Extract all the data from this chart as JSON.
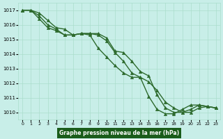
{
  "title": "Graphe pression niveau de la mer (hPa)",
  "xlabel_hours": [
    0,
    1,
    2,
    3,
    4,
    5,
    6,
    7,
    8,
    9,
    10,
    11,
    12,
    13,
    14,
    15,
    16,
    17,
    18,
    19,
    20,
    21,
    22,
    23
  ],
  "series1": [
    1017.0,
    1017.0,
    1016.8,
    1016.3,
    1015.8,
    1015.7,
    1015.3,
    1015.4,
    1015.4,
    1015.4,
    1015.1,
    1014.2,
    1014.1,
    1013.5,
    1012.8,
    1012.5,
    1011.2,
    1010.3,
    1010.0,
    1010.0,
    1010.2,
    1010.5,
    1010.4,
    1010.3
  ],
  "series2": [
    1017.0,
    1017.0,
    1016.6,
    1016.0,
    1015.7,
    1015.3,
    1015.3,
    1015.4,
    1015.4,
    1015.3,
    1014.9,
    1014.1,
    1013.5,
    1012.7,
    1012.4,
    1012.1,
    1011.5,
    1010.7,
    1010.3,
    1010.0,
    1010.0,
    1010.3,
    1010.4,
    1010.3
  ],
  "series3": [
    1017.0,
    1017.0,
    1016.4,
    1015.8,
    1015.6,
    1015.3,
    1015.3,
    1015.4,
    1015.3,
    1014.4,
    1013.8,
    1013.2,
    1012.7,
    1012.4,
    1012.4,
    1011.1,
    1010.2,
    1009.9,
    1009.9,
    1010.2,
    1010.5,
    1010.5,
    1010.4,
    1010.3
  ],
  "line_color": "#2d6a2d",
  "bg_color": "#c8eee8",
  "grid_color": "#aaddcc",
  "label_bg": "#1a5c1a",
  "label_fg": "#ffffff",
  "ylim": [
    1009.5,
    1017.5
  ],
  "yticks": [
    1010,
    1011,
    1012,
    1013,
    1014,
    1015,
    1016,
    1017
  ],
  "marker": "^",
  "markersize": 3,
  "linewidth": 1.0
}
